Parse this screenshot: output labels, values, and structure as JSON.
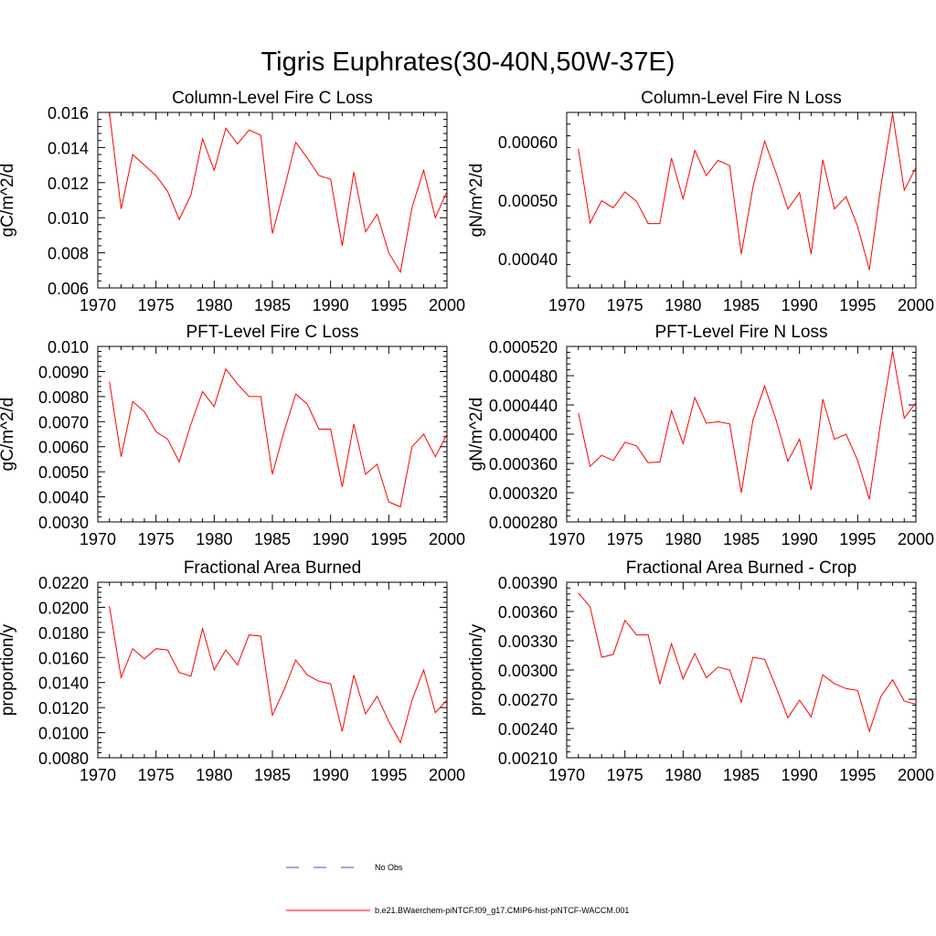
{
  "title": "Tigris Euphrates(30-40N,50W-37E)",
  "legend": [
    {
      "label": "No Obs",
      "color": "#4a4acd",
      "dash": "dashed"
    },
    {
      "label": "b.e21.BWaerchem-piNTCF.f09_g17.CMIP6-hist-piNTCF-WACCM.001",
      "color": "#ff0000",
      "dash": "solid"
    }
  ],
  "chart_data": [
    {
      "type": "line",
      "title": "Column-Level Fire C Loss",
      "ylabel": "gC/m^2/d",
      "xlim": [
        1970,
        2000
      ],
      "ylim": [
        0.006,
        0.016
      ],
      "xticks": [
        1970,
        1975,
        1980,
        1985,
        1990,
        1995,
        2000
      ],
      "yticks": [
        "0.006",
        "0.008",
        "0.010",
        "0.012",
        "0.014",
        "0.016"
      ],
      "grid": false,
      "series": [
        {
          "color": "#ff0000",
          "x": [
            1971,
            1972,
            1973,
            1974,
            1975,
            1976,
            1977,
            1978,
            1979,
            1980,
            1981,
            1982,
            1983,
            1984,
            1985,
            1986,
            1987,
            1988,
            1989,
            1990,
            1991,
            1992,
            1993,
            1994,
            1995,
            1996,
            1997,
            1998,
            1999,
            2000
          ],
          "values": [
            0.016,
            0.0105,
            0.0136,
            0.013,
            0.0124,
            0.0115,
            0.0099,
            0.0113,
            0.0145,
            0.0127,
            0.0151,
            0.0142,
            0.015,
            0.0147,
            0.0091,
            0.0116,
            0.0143,
            0.0134,
            0.0124,
            0.0122,
            0.0084,
            0.0126,
            0.0092,
            0.0102,
            0.008,
            0.0069,
            0.0106,
            0.0127,
            0.01,
            0.0115
          ]
        }
      ]
    },
    {
      "type": "line",
      "title": "Column-Level Fire N Loss",
      "ylabel": "gN/m^2/d",
      "xlim": [
        1970,
        2000
      ],
      "ylim": [
        0.00035,
        0.00065
      ],
      "xticks": [
        1970,
        1975,
        1980,
        1985,
        1990,
        1995,
        2000
      ],
      "yticks": [
        "0.00040",
        "0.00050",
        "0.00060"
      ],
      "grid": false,
      "series": [
        {
          "color": "#ff0000",
          "x": [
            1971,
            1972,
            1973,
            1974,
            1975,
            1976,
            1977,
            1978,
            1979,
            1980,
            1981,
            1982,
            1983,
            1984,
            1985,
            1986,
            1987,
            1988,
            1989,
            1990,
            1991,
            1992,
            1993,
            1994,
            1995,
            1996,
            1997,
            1998,
            1999,
            2000
          ],
          "values": [
            0.000588,
            0.000461,
            0.000499,
            0.000487,
            0.000514,
            0.000498,
            0.00046,
            0.00046,
            0.000572,
            0.000502,
            0.000585,
            0.000542,
            0.000568,
            0.000559,
            0.000408,
            0.000522,
            0.000601,
            0.000546,
            0.000485,
            0.000513,
            0.000408,
            0.000569,
            0.000485,
            0.000506,
            0.000455,
            0.000381,
            0.000525,
            0.000648,
            0.000517,
            0.000556
          ]
        }
      ]
    },
    {
      "type": "line",
      "title": "PFT-Level Fire C Loss",
      "ylabel": "gC/m^2/d",
      "xlim": [
        1970,
        2000
      ],
      "ylim": [
        0.003,
        0.01
      ],
      "xticks": [
        1970,
        1975,
        1980,
        1985,
        1990,
        1995,
        2000
      ],
      "yticks": [
        "0.0030",
        "0.0040",
        "0.0050",
        "0.0060",
        "0.0070",
        "0.0080",
        "0.0090",
        "0.010"
      ],
      "grid": false,
      "series": [
        {
          "color": "#ff0000",
          "x": [
            1971,
            1972,
            1973,
            1974,
            1975,
            1976,
            1977,
            1978,
            1979,
            1980,
            1981,
            1982,
            1983,
            1984,
            1985,
            1986,
            1987,
            1988,
            1989,
            1990,
            1991,
            1992,
            1993,
            1994,
            1995,
            1996,
            1997,
            1998,
            1999,
            2000
          ],
          "values": [
            0.0086,
            0.0056,
            0.0078,
            0.0074,
            0.0066,
            0.0063,
            0.0054,
            0.0069,
            0.0082,
            0.0076,
            0.0091,
            0.0085,
            0.008,
            0.008,
            0.0049,
            0.0066,
            0.0081,
            0.0077,
            0.0067,
            0.0067,
            0.0044,
            0.0069,
            0.0049,
            0.0053,
            0.0038,
            0.0036,
            0.006,
            0.0065,
            0.0056,
            0.0065
          ]
        }
      ]
    },
    {
      "type": "line",
      "title": "PFT-Level Fire N Loss",
      "ylabel": "gN/m^2/d",
      "xlim": [
        1970,
        2000
      ],
      "ylim": [
        0.00028,
        0.00052
      ],
      "xticks": [
        1970,
        1975,
        1980,
        1985,
        1990,
        1995,
        2000
      ],
      "yticks": [
        "0.000280",
        "0.000320",
        "0.000360",
        "0.000400",
        "0.000440",
        "0.000480",
        "0.000520"
      ],
      "grid": false,
      "series": [
        {
          "color": "#ff0000",
          "x": [
            1971,
            1972,
            1973,
            1974,
            1975,
            1976,
            1977,
            1978,
            1979,
            1980,
            1981,
            1982,
            1983,
            1984,
            1985,
            1986,
            1987,
            1988,
            1989,
            1990,
            1991,
            1992,
            1993,
            1994,
            1995,
            1996,
            1997,
            1998,
            1999,
            2000
          ],
          "values": [
            0.000429,
            0.000356,
            0.000371,
            0.000364,
            0.000389,
            0.000384,
            0.000361,
            0.000362,
            0.000432,
            0.000387,
            0.00045,
            0.000415,
            0.000417,
            0.000414,
            0.00032,
            0.000419,
            0.000466,
            0.000419,
            0.000363,
            0.000393,
            0.000324,
            0.000448,
            0.000393,
            0.0004,
            0.000364,
            0.000311,
            0.000419,
            0.000514,
            0.000422,
            0.000443
          ]
        }
      ]
    },
    {
      "type": "line",
      "title": "Fractional Area Burned",
      "ylabel": "proportion/y",
      "xlim": [
        1970,
        2000
      ],
      "ylim": [
        0.008,
        0.022
      ],
      "xticks": [
        1970,
        1975,
        1980,
        1985,
        1990,
        1995,
        2000
      ],
      "yticks": [
        "0.0080",
        "0.0100",
        "0.0120",
        "0.0140",
        "0.0160",
        "0.0180",
        "0.0200",
        "0.0220"
      ],
      "grid": false,
      "series": [
        {
          "color": "#ff0000",
          "x": [
            1971,
            1972,
            1973,
            1974,
            1975,
            1976,
            1977,
            1978,
            1979,
            1980,
            1981,
            1982,
            1983,
            1984,
            1985,
            1986,
            1987,
            1988,
            1989,
            1990,
            1991,
            1992,
            1993,
            1994,
            1995,
            1996,
            1997,
            1998,
            1999,
            2000
          ],
          "values": [
            0.0201,
            0.0144,
            0.0167,
            0.0159,
            0.0167,
            0.0166,
            0.0148,
            0.0145,
            0.0183,
            0.015,
            0.0166,
            0.0154,
            0.0178,
            0.0177,
            0.0114,
            0.0134,
            0.0158,
            0.0146,
            0.0141,
            0.0139,
            0.0101,
            0.0146,
            0.0115,
            0.0129,
            0.0109,
            0.0092,
            0.0126,
            0.015,
            0.0116,
            0.0126
          ]
        }
      ]
    },
    {
      "type": "line",
      "title": "Fractional Area Burned - Crop",
      "ylabel": "proportion/y",
      "xlim": [
        1970,
        2000
      ],
      "ylim": [
        0.0021,
        0.0039
      ],
      "xticks": [
        1970,
        1975,
        1980,
        1985,
        1990,
        1995,
        2000
      ],
      "yticks": [
        "0.00210",
        "0.00240",
        "0.00270",
        "0.00300",
        "0.00330",
        "0.00360",
        "0.00390"
      ],
      "grid": false,
      "series": [
        {
          "color": "#ff0000",
          "x": [
            1971,
            1972,
            1973,
            1974,
            1975,
            1976,
            1977,
            1978,
            1979,
            1980,
            1981,
            1982,
            1983,
            1984,
            1985,
            1986,
            1987,
            1988,
            1989,
            1990,
            1991,
            1992,
            1993,
            1994,
            1995,
            1996,
            1997,
            1998,
            1999,
            2000
          ],
          "values": [
            0.00379,
            0.00365,
            0.00313,
            0.00316,
            0.00351,
            0.00336,
            0.00336,
            0.00286,
            0.00327,
            0.00291,
            0.00317,
            0.00292,
            0.00303,
            0.003,
            0.00267,
            0.00313,
            0.00311,
            0.00282,
            0.00251,
            0.00269,
            0.00252,
            0.00295,
            0.00286,
            0.00281,
            0.00279,
            0.00237,
            0.00273,
            0.0029,
            0.00268,
            0.00265
          ]
        }
      ]
    }
  ]
}
